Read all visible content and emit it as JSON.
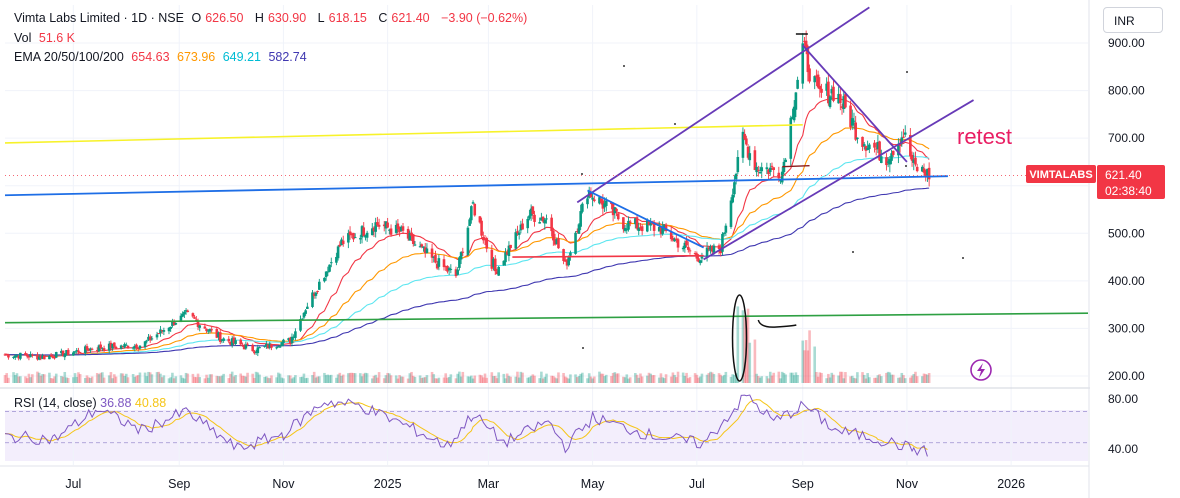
{
  "header": {
    "title": "Vimta Labs Limited · 1D · NSE",
    "open_label": "O",
    "open": "626.50",
    "high_label": "H",
    "high": "630.90",
    "low_label": "L",
    "low": "618.15",
    "close_label": "C",
    "close": "621.40",
    "change": "−3.90 (−0.62%)"
  },
  "volume": {
    "label": "Vol",
    "value": "51.6 K"
  },
  "ema": {
    "label": "EMA 20/50/100/200",
    "values": [
      "654.63",
      "673.96",
      "649.21",
      "582.74"
    ],
    "colors": [
      "#f23645",
      "#ff9800",
      "#5ee6f0",
      "#3f37b0"
    ]
  },
  "currency_button": "INR",
  "price_tag": {
    "symbol": "VIMTALABS",
    "price": "621.40",
    "countdown": "02:38:40",
    "color": "#f23645"
  },
  "annotation": {
    "text": "retest",
    "color": "#e91e63"
  },
  "rsi": {
    "label": "RSI (14, close)",
    "value": "36.88",
    "ma": "40.88",
    "color": "#7e57c2",
    "ma_color": "#f5c518"
  },
  "colors": {
    "up": "#089981",
    "down": "#f23645",
    "grid": "#f0f3fa",
    "channel": "#673ab7",
    "blue_line": "#1e6ee6",
    "yellow_line": "#f7f22a",
    "green_line": "#2ea043"
  },
  "chart_data": {
    "type": "candlestick",
    "y_ticks": [
      "900.00",
      "800.00",
      "700.00",
      "600.00",
      "500.00",
      "400.00",
      "300.00",
      "200.00"
    ],
    "y_tick_values": [
      900,
      800,
      700,
      600,
      500,
      400,
      300,
      200
    ],
    "rsi_ticks": [
      "80.00",
      "40.00"
    ],
    "rsi_tick_values": [
      80,
      40
    ],
    "x_ticks": [
      "Jul",
      "Sep",
      "Nov",
      "2025",
      "Mar",
      "May",
      "Jul",
      "Sep",
      "Nov",
      "2026"
    ],
    "x_tick_dates": [
      "2024-07-01",
      "2024-09-01",
      "2024-11-01",
      "2025-01-01",
      "2025-03-01",
      "2025-05-01",
      "2025-07-01",
      "2025-09-01",
      "2025-11-01",
      "2026-01-01"
    ],
    "x_range": [
      "2024-05-22",
      "2026-02-15"
    ],
    "y_range": [
      185,
      945
    ],
    "rsi_range": [
      30,
      88
    ],
    "price_keypoints": [
      [
        "2024-05-22",
        245
      ],
      [
        "2024-06-15",
        240
      ],
      [
        "2024-07-15",
        260
      ],
      [
        "2024-08-10",
        265
      ],
      [
        "2024-09-05",
        330
      ],
      [
        "2024-09-25",
        280
      ],
      [
        "2024-10-15",
        255
      ],
      [
        "2024-11-05",
        275
      ],
      [
        "2024-11-15",
        350
      ],
      [
        "2024-12-05",
        480
      ],
      [
        "2024-12-25",
        520
      ],
      [
        "2025-01-10",
        500
      ],
      [
        "2025-01-25",
        450
      ],
      [
        "2025-02-10",
        410
      ],
      [
        "2025-02-20",
        560
      ],
      [
        "2025-03-05",
        420
      ],
      [
        "2025-03-25",
        540
      ],
      [
        "2025-04-05",
        530
      ],
      [
        "2025-04-15",
        430
      ],
      [
        "2025-04-28",
        590
      ],
      [
        "2025-05-20",
        520
      ],
      [
        "2025-06-10",
        510
      ],
      [
        "2025-07-01",
        450
      ],
      [
        "2025-07-15",
        470
      ],
      [
        "2025-07-28",
        700
      ],
      [
        "2025-08-05",
        640
      ],
      [
        "2025-08-20",
        630
      ],
      [
        "2025-09-01",
        890
      ],
      [
        "2025-09-10",
        790
      ],
      [
        "2025-09-20",
        800
      ],
      [
        "2025-10-05",
        700
      ],
      [
        "2025-10-20",
        660
      ],
      [
        "2025-10-30",
        710
      ],
      [
        "2025-11-05",
        640
      ],
      [
        "2025-11-15",
        621
      ]
    ],
    "rsi_keypoints": [
      [
        "2024-05-22",
        50
      ],
      [
        "2024-06-20",
        48
      ],
      [
        "2024-07-15",
        72
      ],
      [
        "2024-08-10",
        55
      ],
      [
        "2024-09-05",
        70
      ],
      [
        "2024-10-05",
        40
      ],
      [
        "2024-11-01",
        52
      ],
      [
        "2024-11-25",
        78
      ],
      [
        "2024-12-15",
        75
      ],
      [
        "2025-01-10",
        60
      ],
      [
        "2025-02-05",
        42
      ],
      [
        "2025-02-20",
        68
      ],
      [
        "2025-03-10",
        45
      ],
      [
        "2025-04-05",
        62
      ],
      [
        "2025-04-15",
        42
      ],
      [
        "2025-05-01",
        65
      ],
      [
        "2025-06-01",
        52
      ],
      [
        "2025-07-05",
        44
      ],
      [
        "2025-07-30",
        83
      ],
      [
        "2025-08-15",
        62
      ],
      [
        "2025-09-02",
        75
      ],
      [
        "2025-09-20",
        55
      ],
      [
        "2025-10-15",
        48
      ],
      [
        "2025-11-05",
        40
      ],
      [
        "2025-11-15",
        37
      ]
    ],
    "rsi_band": [
      45,
      70
    ]
  }
}
